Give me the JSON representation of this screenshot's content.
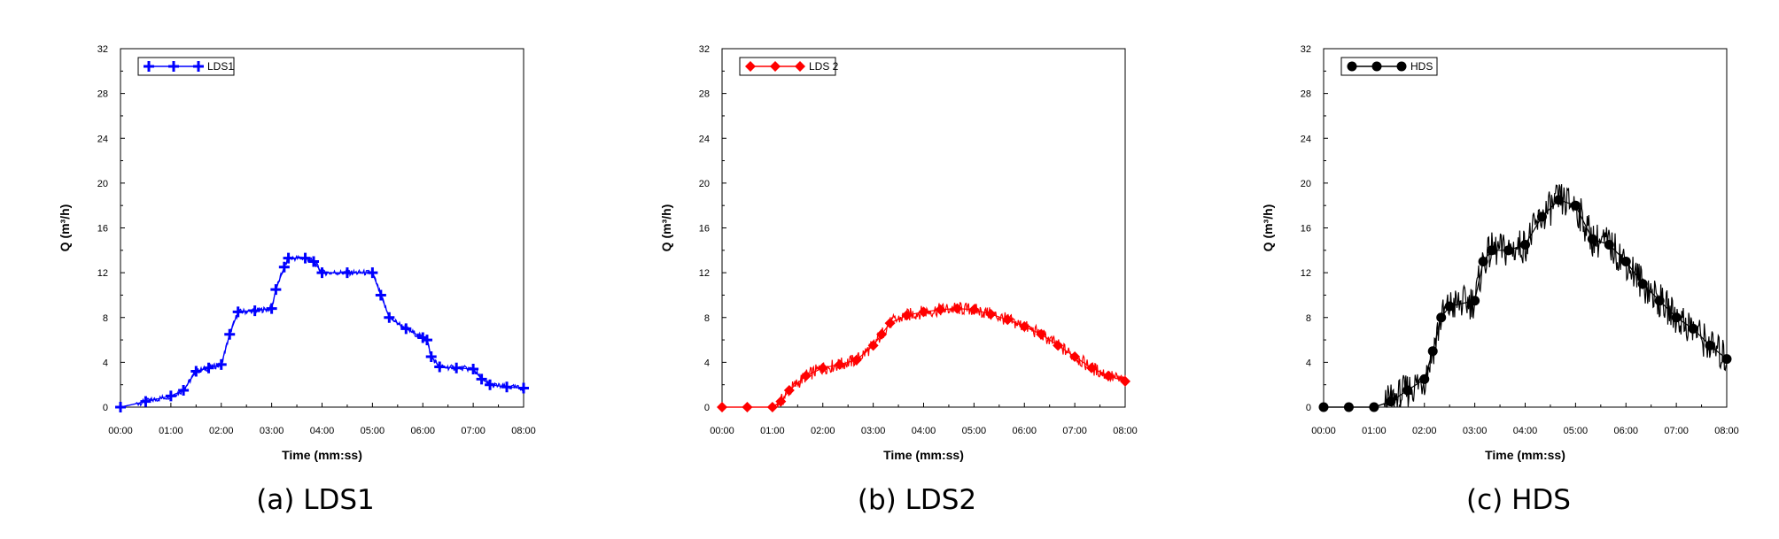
{
  "chart_data": [
    {
      "type": "line",
      "caption": "(a) LDS1",
      "xlabel": "Time (mm:ss)",
      "ylabel": "Q (m³/h)",
      "xlim": [
        "00:00",
        "08:00"
      ],
      "ylim": [
        0,
        32
      ],
      "x_ticks": [
        "00:00",
        "01:00",
        "02:00",
        "03:00",
        "04:00",
        "05:00",
        "06:00",
        "07:00",
        "08:00"
      ],
      "y_ticks": [
        "0",
        "4",
        "8",
        "12",
        "16",
        "20",
        "24",
        "28",
        "32"
      ],
      "legend_position": "top-left",
      "grid": false,
      "series": [
        {
          "name": "LDS1",
          "color": "#0000ff",
          "marker": "plus-icon",
          "x": [
            "00:00",
            "00:30",
            "01:00",
            "01:15",
            "01:30",
            "01:45",
            "02:00",
            "02:10",
            "02:20",
            "02:40",
            "03:00",
            "03:05",
            "03:15",
            "03:20",
            "03:40",
            "03:50",
            "04:00",
            "04:30",
            "05:00",
            "05:10",
            "05:20",
            "05:40",
            "06:00",
            "06:05",
            "06:10",
            "06:20",
            "06:40",
            "07:00",
            "07:10",
            "07:20",
            "07:40",
            "08:00"
          ],
          "y": [
            0,
            0.5,
            1.0,
            1.5,
            3.2,
            3.5,
            3.8,
            6.5,
            8.5,
            8.6,
            8.8,
            10.5,
            12.5,
            13.3,
            13.3,
            13.0,
            12.0,
            12.0,
            12.0,
            10.0,
            8.0,
            7.0,
            6.2,
            6.0,
            4.5,
            3.6,
            3.5,
            3.4,
            2.5,
            2.0,
            1.8,
            1.7
          ]
        }
      ]
    },
    {
      "type": "line",
      "caption": "(b) LDS2",
      "xlabel": "Time (mm:ss)",
      "ylabel": "Q (m³/h)",
      "xlim": [
        "00:00",
        "08:00"
      ],
      "ylim": [
        0,
        32
      ],
      "x_ticks": [
        "00:00",
        "01:00",
        "02:00",
        "03:00",
        "04:00",
        "05:00",
        "06:00",
        "07:00",
        "08:00"
      ],
      "y_ticks": [
        "0",
        "4",
        "8",
        "12",
        "16",
        "20",
        "24",
        "28",
        "32"
      ],
      "legend_position": "top-left",
      "grid": false,
      "series": [
        {
          "name": "LDS 2",
          "color": "#ff0000",
          "marker": "diamond-icon",
          "x": [
            "00:00",
            "00:30",
            "01:00",
            "01:10",
            "01:20",
            "01:40",
            "02:00",
            "02:20",
            "02:40",
            "03:00",
            "03:10",
            "03:20",
            "03:40",
            "04:00",
            "04:20",
            "04:40",
            "05:00",
            "05:20",
            "05:40",
            "06:00",
            "06:20",
            "06:40",
            "07:00",
            "07:20",
            "07:40",
            "08:00"
          ],
          "y": [
            0,
            0,
            0,
            0.5,
            1.5,
            2.8,
            3.5,
            3.8,
            4.2,
            5.5,
            6.5,
            7.5,
            8.2,
            8.5,
            8.7,
            8.8,
            8.7,
            8.3,
            7.8,
            7.2,
            6.5,
            5.5,
            4.5,
            3.5,
            2.8,
            2.3
          ]
        }
      ]
    },
    {
      "type": "line",
      "caption": "(c) HDS",
      "xlabel": "Time (mm:ss)",
      "ylabel": "Q (m³/h)",
      "xlim": [
        "00:00",
        "08:00"
      ],
      "ylim": [
        0,
        32
      ],
      "x_ticks": [
        "00:00",
        "01:00",
        "02:00",
        "03:00",
        "04:00",
        "05:00",
        "06:00",
        "07:00",
        "08:00"
      ],
      "y_ticks": [
        "0",
        "4",
        "8",
        "12",
        "16",
        "20",
        "24",
        "28",
        "32"
      ],
      "legend_position": "top-left",
      "grid": false,
      "series": [
        {
          "name": "HDS",
          "color": "#000000",
          "marker": "circle-icon",
          "x": [
            "00:00",
            "00:30",
            "01:00",
            "01:20",
            "01:40",
            "02:00",
            "02:10",
            "02:20",
            "02:30",
            "03:00",
            "03:10",
            "03:20",
            "03:40",
            "04:00",
            "04:20",
            "04:40",
            "05:00",
            "05:20",
            "05:40",
            "06:00",
            "06:20",
            "06:40",
            "07:00",
            "07:20",
            "07:40",
            "08:00"
          ],
          "y": [
            0,
            0,
            0,
            0.5,
            1.5,
            2.5,
            5.0,
            8.0,
            9.0,
            9.5,
            13.0,
            14.0,
            14.0,
            14.5,
            17.0,
            18.5,
            18.0,
            15.0,
            14.5,
            13.0,
            11.0,
            9.5,
            8.0,
            7.0,
            5.5,
            4.3
          ]
        }
      ]
    }
  ]
}
